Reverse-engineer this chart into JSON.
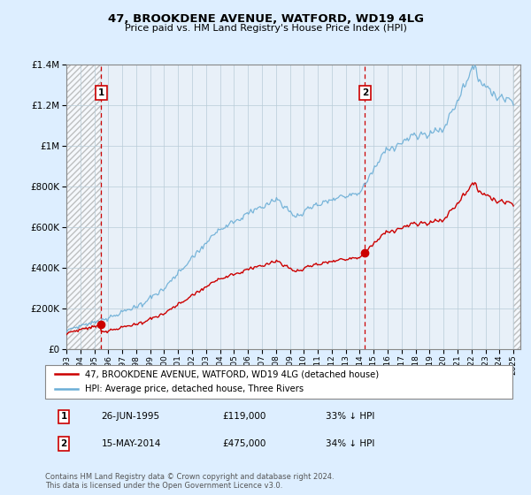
{
  "title": "47, BROOKDENE AVENUE, WATFORD, WD19 4LG",
  "subtitle": "Price paid vs. HM Land Registry's House Price Index (HPI)",
  "hpi_label": "HPI: Average price, detached house, Three Rivers",
  "property_label": "47, BROOKDENE AVENUE, WATFORD, WD19 4LG (detached house)",
  "footnote": "Contains HM Land Registry data © Crown copyright and database right 2024.\nThis data is licensed under the Open Government Licence v3.0.",
  "sale1_date": 1995.49,
  "sale1_price": 119000,
  "sale1_date_str": "26-JUN-1995",
  "sale2_date": 2014.37,
  "sale2_price": 475000,
  "sale2_date_str": "15-MAY-2014",
  "hpi_color": "#6baed6",
  "property_color": "#cc0000",
  "background_color": "#ddeeff",
  "plot_bg": "#e8f0f8",
  "grid_color": "#b8ccd8",
  "ylim": [
    0,
    1400000
  ],
  "xlim_start": 1993,
  "xlim_end": 2025.5,
  "hatch_end": 2025.0
}
